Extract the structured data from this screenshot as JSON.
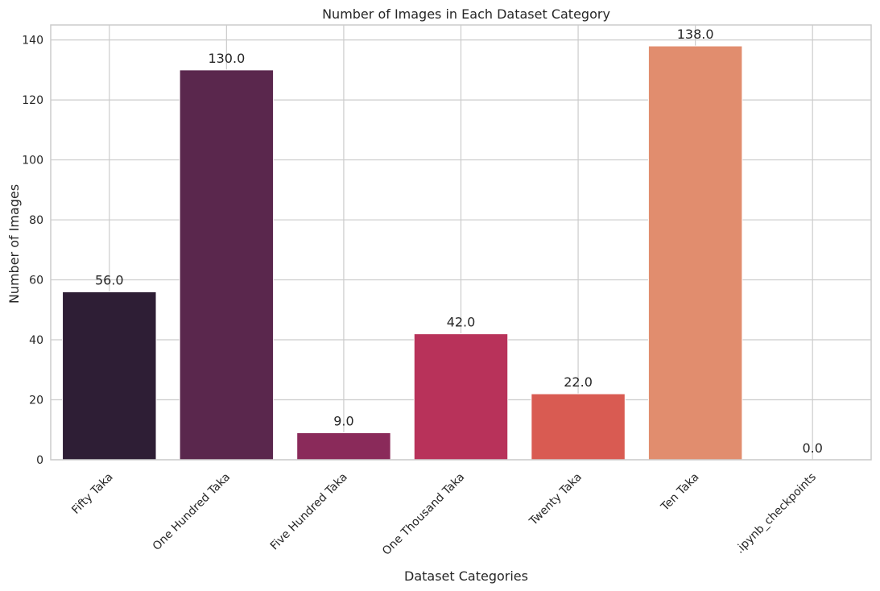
{
  "chart_data": {
    "type": "bar",
    "title": "Number of Images in Each Dataset Category",
    "xlabel": "Dataset Categories",
    "ylabel": "Number of Images",
    "categories": [
      "Fifty Taka",
      "One Hundred Taka",
      "Five Hundred Taka",
      "One Thousand Taka",
      "Twenty Taka",
      "Ten Taka",
      ".ipynb_checkpoints"
    ],
    "values": [
      56,
      130,
      9,
      42,
      22,
      138,
      0
    ],
    "value_labels": [
      "56.0",
      "130.0",
      "9.0",
      "42.0",
      "22.0",
      "138.0",
      "0.0"
    ],
    "colors": [
      "#2e1e35",
      "#5a274d",
      "#8a2a5a",
      "#b8325a",
      "#d95b52",
      "#e18d6e",
      "#f3c7a0"
    ],
    "yticks": [
      0,
      20,
      40,
      60,
      80,
      100,
      120,
      140
    ],
    "ylim": [
      0,
      145
    ],
    "grid": true,
    "xtick_rotation_deg": 45
  }
}
